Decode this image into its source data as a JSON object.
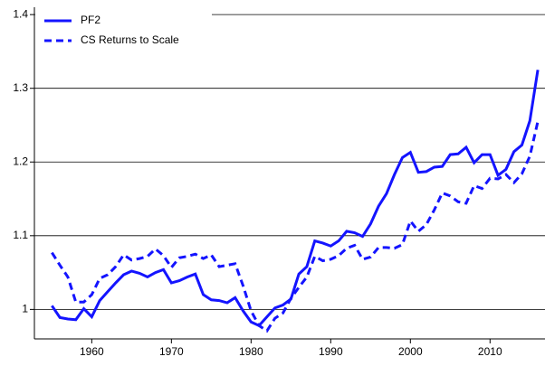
{
  "chart_data": {
    "type": "line",
    "x": [
      1955,
      1956,
      1957,
      1958,
      1959,
      1960,
      1961,
      1962,
      1963,
      1964,
      1965,
      1966,
      1967,
      1968,
      1969,
      1970,
      1971,
      1972,
      1973,
      1974,
      1975,
      1976,
      1977,
      1978,
      1979,
      1980,
      1981,
      1982,
      1983,
      1984,
      1985,
      1986,
      1987,
      1988,
      1989,
      1990,
      1991,
      1992,
      1993,
      1994,
      1995,
      1996,
      1997,
      1998,
      1999,
      2000,
      2001,
      2002,
      2003,
      2004,
      2005,
      2006,
      2007,
      2008,
      2009,
      2010,
      2011,
      2012,
      2013,
      2014,
      2015,
      2016
    ],
    "series": [
      {
        "name": "PF2",
        "color": "#1414ff",
        "style": "solid",
        "values": [
          1.005,
          0.989,
          0.987,
          0.986,
          1.001,
          0.99,
          1.012,
          1.024,
          1.036,
          1.047,
          1.052,
          1.049,
          1.044,
          1.05,
          1.054,
          1.036,
          1.039,
          1.044,
          1.048,
          1.02,
          1.013,
          1.012,
          1.009,
          1.016,
          0.998,
          0.983,
          0.978,
          0.99,
          1.002,
          1.006,
          1.014,
          1.048,
          1.058,
          1.093,
          1.09,
          1.086,
          1.093,
          1.106,
          1.104,
          1.099,
          1.116,
          1.14,
          1.157,
          1.183,
          1.206,
          1.213,
          1.186,
          1.187,
          1.193,
          1.194,
          1.21,
          1.211,
          1.22,
          1.199,
          1.21,
          1.21,
          1.182,
          1.19,
          1.214,
          1.223,
          1.256,
          1.325
        ]
      },
      {
        "name": "CS Returns to Scale",
        "color": "#1414ff",
        "style": "dashed",
        "values": [
          1.077,
          1.06,
          1.044,
          1.01,
          1.01,
          1.02,
          1.042,
          1.047,
          1.058,
          1.074,
          1.067,
          1.069,
          1.072,
          1.082,
          1.073,
          1.057,
          1.07,
          1.072,
          1.075,
          1.069,
          1.074,
          1.058,
          1.06,
          1.062,
          1.032,
          0.998,
          0.978,
          0.971,
          0.988,
          0.995,
          1.015,
          1.03,
          1.044,
          1.072,
          1.066,
          1.068,
          1.073,
          1.083,
          1.087,
          1.068,
          1.071,
          1.084,
          1.084,
          1.083,
          1.088,
          1.12,
          1.106,
          1.115,
          1.135,
          1.158,
          1.154,
          1.146,
          1.144,
          1.168,
          1.164,
          1.178,
          1.177,
          1.183,
          1.172,
          1.184,
          1.208,
          1.255
        ]
      }
    ],
    "xlim": [
      1952.8,
      2016.9
    ],
    "xticks": [
      1960,
      1970,
      1980,
      1990,
      2000,
      2010
    ],
    "ylim": [
      0.96,
      1.41
    ],
    "yticks": [
      1,
      1.1,
      1.2,
      1.3,
      1.4
    ],
    "grid": true,
    "legend": "top-left"
  }
}
